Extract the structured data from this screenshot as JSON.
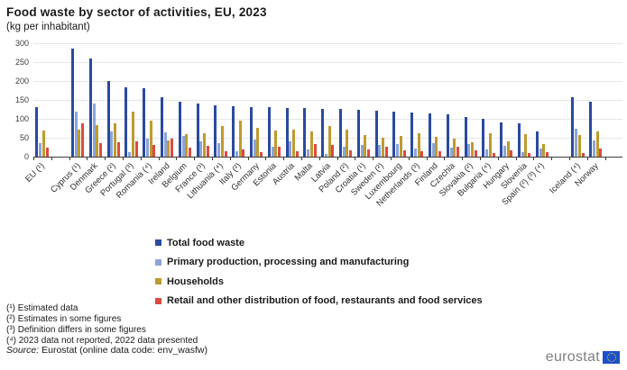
{
  "title": "Food waste by sector of activities, EU, 2023",
  "subtitle": "(kg per inhabitant)",
  "chart_data": {
    "type": "bar",
    "title": "Food waste by sector of activities, EU, 2023",
    "unit": "kg per inhabitant",
    "ylim": [
      0,
      300
    ],
    "yticks": [
      0,
      50,
      100,
      150,
      200,
      250,
      300
    ],
    "grid": true,
    "legend_position": "bottom-left",
    "categories": [
      "EU (¹)",
      "Cyprus (¹)",
      "Denmark",
      "Greece (²)",
      "Portugal (³)",
      "Romania (⁴)",
      "Ireland",
      "Belgium",
      "France (³)",
      "Lithuania (⁴)",
      "Italy (²)",
      "Germany",
      "Estonia",
      "Austria",
      "Malta",
      "Latvia",
      "Poland (²)",
      "Croatia (¹)",
      "Sweden (²)",
      "Luxembourg",
      "Netherlands (³)",
      "Finland",
      "Czechia",
      "Slovakia (²)",
      "Bulgaria (⁴)",
      "Hungary",
      "Slovenia",
      "Spain (²) (³) (⁴)",
      "Iceland (⁴)",
      "Norway"
    ],
    "category_gaps_after_indices": [
      0,
      27
    ],
    "series": [
      {
        "name": "Total food waste",
        "color": "#2a4aa0",
        "values": [
          130,
          286,
          260,
          199,
          183,
          180,
          156,
          146,
          141,
          135,
          133,
          131,
          130,
          129,
          129,
          126,
          127,
          124,
          121,
          118,
          116,
          115,
          111,
          104,
          100,
          91,
          88,
          67,
          158,
          146
        ]
      },
      {
        "name": "Primary production, processing and manufacturing",
        "color": "#8aa4db",
        "values": [
          35,
          119,
          140,
          66,
          13,
          47,
          64,
          55,
          40,
          36,
          15,
          45,
          27,
          40,
          18,
          7,
          27,
          32,
          31,
          33,
          21,
          35,
          24,
          33,
          20,
          28,
          13,
          22,
          75,
          42
        ]
      },
      {
        "name": "Households",
        "color": "#be9b2f",
        "values": [
          69,
          72,
          84,
          87,
          119,
          95,
          42,
          60,
          62,
          80,
          96,
          76,
          68,
          72,
          67,
          80,
          71,
          57,
          49,
          55,
          63,
          53,
          47,
          39,
          61,
          40,
          59,
          34,
          58,
          67
        ]
      },
      {
        "name": "Retail and other distribution of food, restaurants and food services",
        "color": "#dc4a41",
        "values": [
          25,
          88,
          35,
          39,
          40,
          30,
          47,
          23,
          29,
          14,
          20,
          11,
          27,
          14,
          33,
          31,
          17,
          20,
          27,
          17,
          15,
          15,
          26,
          17,
          10,
          17,
          10,
          12,
          10,
          21
        ]
      }
    ]
  },
  "footnotes": [
    "(¹) Estimated data",
    "(²) Estimates in some figures",
    "(³) Definition differs in some figures",
    "(⁴) 2023 data not reported, 2022 data presented"
  ],
  "source": {
    "label": "Source:",
    "text": " Eurostat (online data code: env_wasfw)"
  },
  "logo": {
    "text": "eurostat"
  }
}
